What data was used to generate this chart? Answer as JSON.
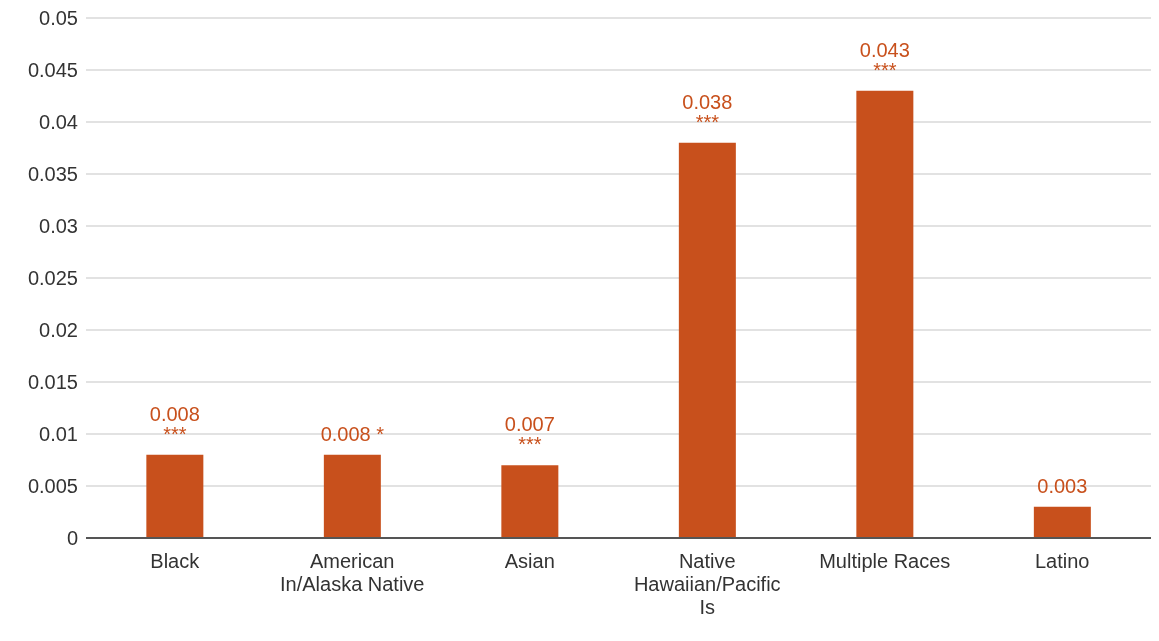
{
  "chart_data": {
    "type": "bar",
    "categories": [
      "Black",
      "American In/Alaska Native",
      "Asian",
      "Native Hawaiian/Pacific Is",
      "Multiple Races",
      "Latino"
    ],
    "values": [
      0.008,
      0.008,
      0.007,
      0.038,
      0.043,
      0.003
    ],
    "value_labels": [
      "0.008 ***",
      "0.008 *",
      "0.007 ***",
      "0.038 ***",
      "0.043 ***",
      "0.003"
    ],
    "color": "#c8501c",
    "ylim": [
      0,
      0.05
    ],
    "yticks": [
      0,
      0.005,
      0.01,
      0.015,
      0.02,
      0.025,
      0.03,
      0.035,
      0.04,
      0.045,
      0.05
    ],
    "grid": "y"
  }
}
